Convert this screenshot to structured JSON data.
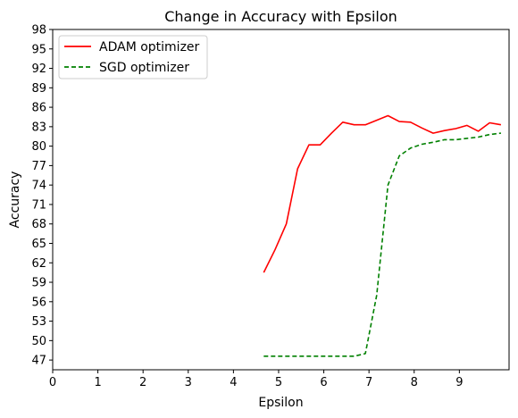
{
  "chart_data": {
    "type": "line",
    "title": "Change in Accuracy with Epsilon",
    "xlabel": "Epsilon",
    "ylabel": "Accuracy",
    "xlim": [
      0,
      10.1
    ],
    "ylim": [
      45.5,
      98
    ],
    "xticks": [
      0,
      1,
      2,
      3,
      4,
      5,
      6,
      7,
      8,
      9
    ],
    "yticks": [
      47,
      50,
      53,
      56,
      59,
      62,
      65,
      68,
      71,
      74,
      77,
      80,
      83,
      86,
      89,
      92,
      95,
      98
    ],
    "grid": false,
    "legend_position": "top-left",
    "series": [
      {
        "name": "ADAM optimizer",
        "color": "#ff0000",
        "style": "solid",
        "x": [
          4.67,
          4.92,
          5.17,
          5.42,
          5.67,
          5.92,
          6.17,
          6.42,
          6.67,
          6.92,
          7.17,
          7.42,
          7.67,
          7.92,
          8.17,
          8.42,
          8.67,
          8.92,
          9.17,
          9.42,
          9.67,
          9.92
        ],
        "y": [
          60.5,
          64.0,
          68.0,
          76.5,
          80.2,
          80.2,
          82.0,
          83.7,
          83.3,
          83.3,
          84.0,
          84.7,
          83.8,
          83.7,
          82.8,
          82.0,
          82.4,
          82.7,
          83.2,
          82.3,
          83.6,
          83.3
        ]
      },
      {
        "name": "SGD optimizer",
        "color": "#008000",
        "style": "dashed",
        "x": [
          4.67,
          4.92,
          5.17,
          5.42,
          5.67,
          5.92,
          6.17,
          6.42,
          6.67,
          6.92,
          7.17,
          7.42,
          7.67,
          7.92,
          8.17,
          8.42,
          8.67,
          8.92,
          9.17,
          9.42,
          9.67,
          9.92
        ],
        "y": [
          47.6,
          47.6,
          47.6,
          47.6,
          47.6,
          47.6,
          47.6,
          47.6,
          47.6,
          48.0,
          57.0,
          74.0,
          78.5,
          79.7,
          80.3,
          80.6,
          81.0,
          81.0,
          81.2,
          81.4,
          81.8,
          82.0
        ]
      }
    ]
  }
}
